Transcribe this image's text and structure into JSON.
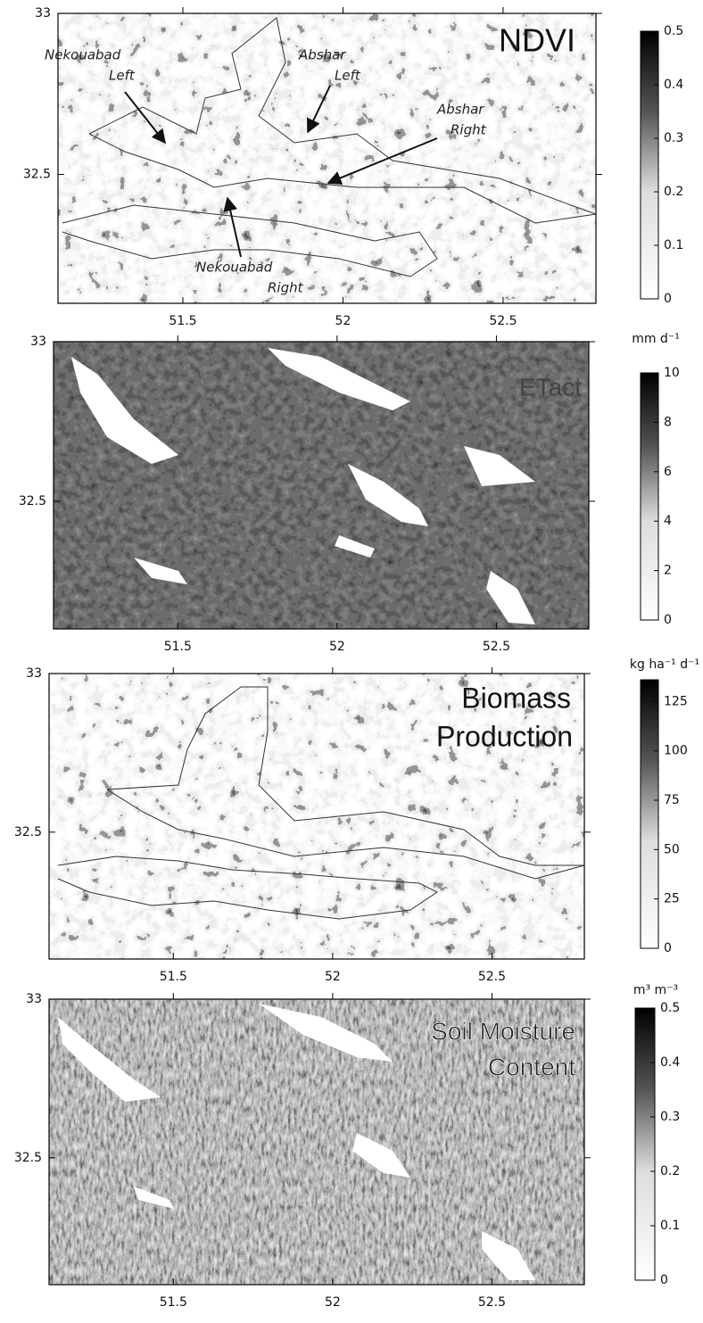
{
  "panels": [
    {
      "title": [
        "NDVI"
      ],
      "xlim": [
        51.11,
        52.79
      ],
      "ylim": [
        32.1,
        33
      ],
      "xticks": [
        51.5,
        52,
        52.5
      ],
      "yticks": [
        32.5,
        33
      ],
      "colorbar": {
        "lim": [
          0,
          0.5
        ],
        "ticks": [
          0,
          0.1,
          0.2,
          0.3,
          0.4,
          0.5
        ]
      },
      "annotations": [
        {
          "lines": [
            "Nekouabad",
            "Left"
          ]
        },
        {
          "lines": [
            "Abshar",
            "Left"
          ]
        },
        {
          "lines": [
            "Abshar",
            "Right"
          ]
        },
        {
          "lines": [
            "Nekouabad",
            "Right"
          ]
        }
      ]
    },
    {
      "title": [
        "ETact"
      ],
      "xlim": [
        51.11,
        52.79
      ],
      "ylim": [
        32.1,
        33
      ],
      "xticks": [
        51.5,
        52,
        52.5
      ],
      "yticks": [
        32.5,
        33
      ],
      "colorbar": {
        "label": "mm d⁻¹",
        "lim": [
          0,
          10
        ],
        "ticks": [
          0,
          2,
          4,
          6,
          8,
          10
        ]
      }
    },
    {
      "title": [
        "Biomass",
        "Production"
      ],
      "xlim": [
        51.11,
        52.79
      ],
      "ylim": [
        32.1,
        33
      ],
      "xticks": [
        51.5,
        52,
        52.5
      ],
      "yticks": [
        32.5,
        33
      ],
      "colorbar": {
        "label": "kg ha⁻¹ d⁻¹",
        "lim": [
          0,
          136
        ],
        "ticks": [
          0,
          25,
          50,
          75,
          100,
          125
        ]
      }
    },
    {
      "title": [
        "Soil Moisture",
        "Content"
      ],
      "xlim": [
        51.11,
        52.79
      ],
      "ylim": [
        32.1,
        33
      ],
      "xticks": [
        51.5,
        52,
        52.5
      ],
      "yticks": [
        32.5,
        33
      ],
      "colorbar": {
        "label": "m³ m⁻³",
        "lim": [
          0,
          0.5
        ],
        "ticks": [
          0,
          0.1,
          0.2,
          0.3,
          0.4,
          0.5
        ]
      }
    }
  ]
}
